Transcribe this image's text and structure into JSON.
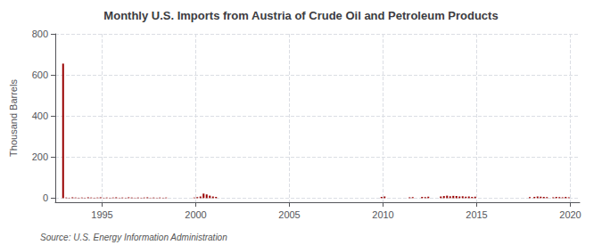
{
  "chart_data": {
    "type": "bar",
    "title": "Monthly U.S. Imports from Austria of Crude Oil and Petroleum Products",
    "y_label": "Thousand Barrels",
    "annotations": [
      "Source: U.S. Energy Information Administration"
    ],
    "color": "#990000",
    "xlim": [
      1992.5,
      2020.5
    ],
    "ylim": [
      -20,
      800
    ],
    "xticks": [
      1995,
      2000,
      2005,
      2010,
      2015,
      2020
    ],
    "yticks": [
      0,
      200,
      400,
      600,
      800
    ],
    "grid": true,
    "x": [
      1992.917,
      1993.083,
      1993.25,
      1993.417,
      1993.583,
      1993.75,
      1993.917,
      1994.083,
      1994.25,
      1994.417,
      1994.583,
      1994.75,
      1994.917,
      1995.083,
      1995.25,
      1995.417,
      1995.583,
      1995.75,
      1995.917,
      1996.083,
      1996.25,
      1996.417,
      1996.583,
      1996.75,
      1996.917,
      1997.083,
      1997.25,
      1997.417,
      1997.583,
      1997.75,
      1997.917,
      1998.083,
      1998.25,
      1998.417,
      1999.917,
      2000.083,
      2000.25,
      2000.417,
      2000.583,
      2000.75,
      2000.917,
      2001.083,
      2009.917,
      2010.083,
      2011.417,
      2011.583,
      2012.083,
      2012.25,
      2012.417,
      2013.083,
      2013.25,
      2013.417,
      2013.583,
      2013.75,
      2013.917,
      2014.083,
      2014.25,
      2014.417,
      2014.583,
      2014.75,
      2014.917,
      2017.833,
      2018.083,
      2018.25,
      2018.417,
      2018.583,
      2018.75,
      2019.083,
      2019.25,
      2019.417,
      2019.583,
      2019.75,
      2019.917
    ],
    "values": [
      655,
      3,
      2,
      4,
      3,
      2,
      3,
      2,
      4,
      3,
      2,
      3,
      4,
      2,
      3,
      2,
      3,
      4,
      2,
      3,
      2,
      4,
      3,
      2,
      3,
      2,
      3,
      4,
      2,
      3,
      2,
      3,
      2,
      3,
      3,
      5,
      8,
      22,
      18,
      12,
      8,
      6,
      6,
      8,
      4,
      5,
      6,
      5,
      7,
      8,
      10,
      12,
      9,
      11,
      10,
      8,
      9,
      7,
      8,
      6,
      7,
      5,
      6,
      8,
      7,
      6,
      5,
      4,
      6,
      5,
      4,
      6,
      4
    ]
  }
}
